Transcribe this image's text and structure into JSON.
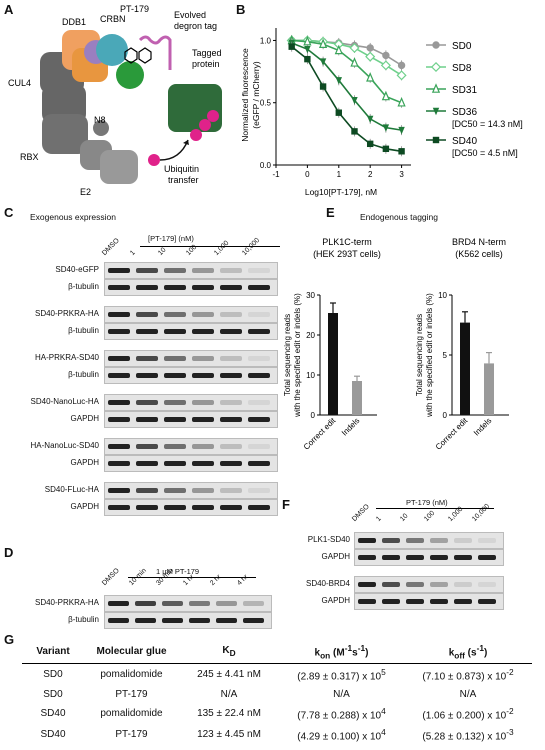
{
  "panels": {
    "A": "A",
    "B": "B",
    "C": "C",
    "D": "D",
    "E": "E",
    "F": "F",
    "G": "G"
  },
  "panelA": {
    "labels": {
      "ddb1": "DDB1",
      "crbn": "CRBN",
      "pt179": "PT-179",
      "degron": "Evolved\ndegron tag",
      "tagged": "Tagged\nprotein",
      "cul4": "CUL4",
      "n8": "N8",
      "rbx": "RBX",
      "e2": "E2",
      "ubiq": "Ubiquitin\ntransfer"
    },
    "colors": {
      "ddb1": "#f0a060",
      "crbn": "#4aa8b8",
      "cul4": "#666666",
      "tagged": "#2f6b3a",
      "ubiq": "#e0228a",
      "degron": "#c060b0",
      "green": "#2a9a3a"
    }
  },
  "chart_data": {
    "type": "line",
    "xlabel": "Log10[PT-179], nM",
    "ylabel": "Normalized fluorescence\n(eGFP / mCherry)",
    "xlim": [
      -1,
      3.3
    ],
    "ylim": [
      0,
      1.1
    ],
    "xticks": [
      -1,
      0,
      1,
      2,
      3
    ],
    "yticks": [
      0.0,
      0.5,
      1.0
    ],
    "x": [
      -0.5,
      0,
      0.5,
      1,
      1.5,
      2,
      2.5,
      3
    ],
    "series": [
      {
        "name": "SD0",
        "color": "#999999",
        "marker": "circle",
        "values": [
          1.0,
          1.0,
          0.99,
          0.98,
          0.96,
          0.94,
          0.88,
          0.8
        ]
      },
      {
        "name": "SD8",
        "color": "#6fd08c",
        "marker": "diamond",
        "values": [
          1.0,
          1.0,
          0.99,
          0.97,
          0.94,
          0.87,
          0.8,
          0.72
        ]
      },
      {
        "name": "SD31",
        "color": "#3aa45a",
        "marker": "triangle",
        "values": [
          1.0,
          0.99,
          0.97,
          0.92,
          0.82,
          0.7,
          0.55,
          0.5
        ]
      },
      {
        "name": "SD36",
        "color": "#1f7a3a",
        "marker": "triangle-down",
        "values": [
          0.98,
          0.93,
          0.83,
          0.68,
          0.52,
          0.37,
          0.3,
          0.28
        ]
      },
      {
        "name": "SD40",
        "color": "#0d4a22",
        "marker": "square",
        "values": [
          0.95,
          0.85,
          0.63,
          0.42,
          0.27,
          0.17,
          0.13,
          0.11
        ]
      }
    ],
    "annotations": [
      "[DC50 = 14.3 nM]",
      "[DC50 = 4.5 nM]"
    ]
  },
  "panelC": {
    "title": "Exogenous expression",
    "treatment": "[PT-179] (nM)",
    "lanes": [
      "DMSO",
      "1",
      "10",
      "100",
      "1,000",
      "10,000"
    ],
    "rows": [
      "SD40-eGFP",
      "β-tubulin",
      "SD40-PRKRA-HA",
      "β-tubulin",
      "HA-PRKRA-SD40",
      "β-tubulin",
      "SD40-NanoLuc-HA",
      "GAPDH",
      "HA-NanoLuc-SD40",
      "GAPDH",
      "SD40-FLuc-HA",
      "GAPDH"
    ]
  },
  "panelD": {
    "treatment": "1 μM PT-179",
    "lanes": [
      "DMSO",
      "10 min",
      "30 min",
      "1 hr",
      "2 hr",
      "4 hr"
    ],
    "rows": [
      "SD40-PRKRA-HA",
      "β-tubulin"
    ]
  },
  "panelE": {
    "title": "Endogenous tagging",
    "charts": [
      {
        "title": "PLK1C-term",
        "subtitle": "(HEK 293T cells)",
        "ylabel": "Total sequencing reads\nwith the specified edit or indels (%)",
        "categories": [
          "Correct edit",
          "Indels"
        ],
        "values": [
          25.5,
          8.5
        ],
        "errors": [
          2.5,
          1.2
        ],
        "ylim": [
          0,
          30
        ],
        "yticks": [
          0,
          10,
          20,
          30
        ]
      },
      {
        "title": "BRD4 N-term",
        "subtitle": "(K562 cells)",
        "ylabel": "Total sequencing reads\nwith the specified edit or indels (%)",
        "categories": [
          "Correct edit",
          "Indels"
        ],
        "values": [
          7.7,
          4.3
        ],
        "errors": [
          0.9,
          0.9
        ],
        "ylim": [
          0,
          10
        ],
        "yticks": [
          0,
          5,
          10
        ]
      }
    ]
  },
  "panelF": {
    "treatment": "PT-179 (nM)",
    "lanes": [
      "DMSO",
      "1",
      "10",
      "100",
      "1,000",
      "10,000"
    ],
    "rows": [
      "PLK1-SD40",
      "GAPDH",
      "SD40-BRD4",
      "GAPDH"
    ]
  },
  "panelG": {
    "headers": [
      "Variant",
      "Molecular glue",
      "KD",
      "kon (M-1s-1)",
      "koff (s-1)"
    ],
    "rows": [
      [
        "SD0",
        "pomalidomide",
        "245 ± 4.41 nM",
        "(2.89 ± 0.317) x 10^5",
        "(7.10 ± 0.873) x 10^-2"
      ],
      [
        "SD0",
        "PT-179",
        "N/A",
        "N/A",
        "N/A"
      ],
      [
        "SD40",
        "pomalidomide",
        "135 ± 22.4 nM",
        "(7.78 ± 0.288) x 10^4",
        "(1.06 ± 0.200) x 10^-2"
      ],
      [
        "SD40",
        "PT-179",
        "123 ± 4.45 nM",
        "(4.29 ± 0.100) x 10^4",
        "(5.28 ± 0.132) x 10^-3"
      ]
    ]
  }
}
